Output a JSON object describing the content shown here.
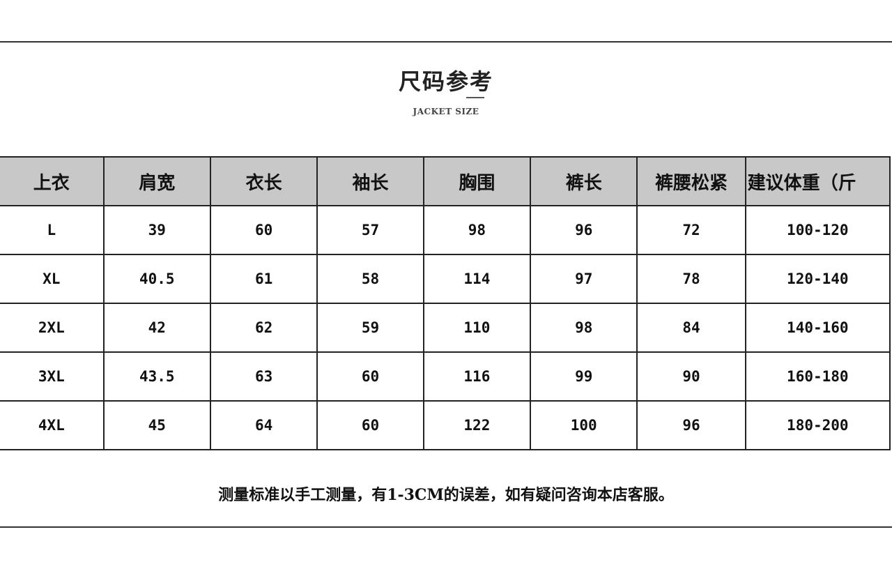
{
  "header": {
    "title": "尺码参考",
    "subtitle": "JACKET SIZE"
  },
  "table": {
    "columns": [
      "上衣",
      "肩宽",
      "衣长",
      "袖长",
      "胸围",
      "裤长",
      "裤腰松紧",
      "建议体重（斤"
    ],
    "rows": [
      [
        "L",
        "39",
        "60",
        "57",
        "98",
        "96",
        "72",
        "100-120"
      ],
      [
        "XL",
        "40.5",
        "61",
        "58",
        "114",
        "97",
        "78",
        "120-140"
      ],
      [
        "2XL",
        "42",
        "62",
        "59",
        "110",
        "98",
        "84",
        "140-160"
      ],
      [
        "3XL",
        "43.5",
        "63",
        "60",
        "116",
        "99",
        "90",
        "160-180"
      ],
      [
        "4XL",
        "45",
        "64",
        "60",
        "122",
        "100",
        "96",
        "180-200"
      ]
    ],
    "header_bg": "#c8c8c8"
  },
  "footer": {
    "note": "测量标准以手工测量，有1-3CM的误差，如有疑问咨询本店客服。"
  }
}
